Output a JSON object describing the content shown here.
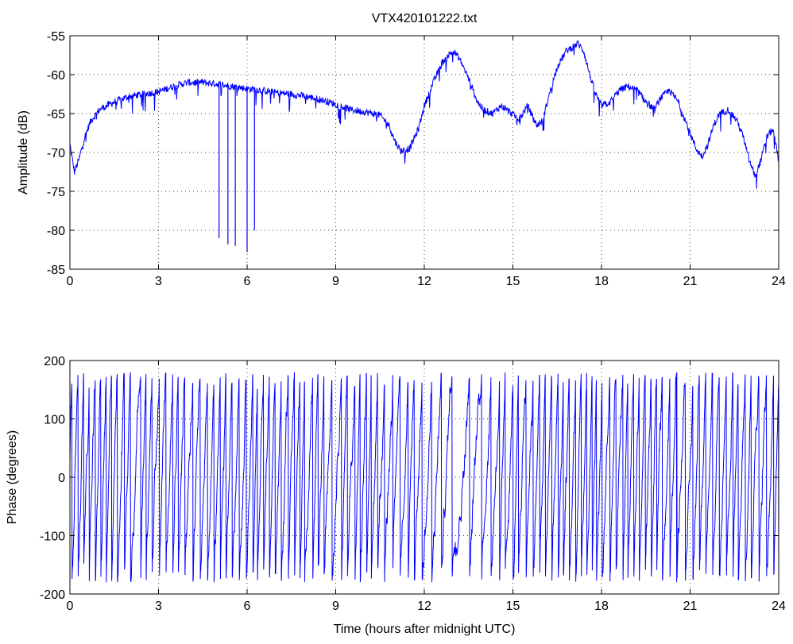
{
  "chart_data": [
    {
      "type": "line",
      "title": "VTX420101222.txt",
      "xlabel": "",
      "ylabel": "Amplitude (dB)",
      "xlim": [
        0,
        24
      ],
      "ylim": [
        -85,
        -55
      ],
      "xticks": [
        0,
        3,
        6,
        9,
        12,
        15,
        18,
        21,
        24
      ],
      "yticks": [
        -85,
        -80,
        -75,
        -70,
        -65,
        -60,
        -55
      ],
      "xtick_labels": [
        "0",
        "3",
        "6",
        "9",
        "12",
        "15",
        "18",
        "21",
        "24"
      ],
      "ytick_labels": [
        "-85",
        "-80",
        "-75",
        "-70",
        "-65",
        "-60",
        "-55"
      ],
      "grid": true,
      "series_color": "#0000ff",
      "series": [
        {
          "name": "",
          "x": [
            0,
            0.15,
            0.3,
            0.5,
            0.7,
            1.0,
            1.5,
            2.0,
            2.5,
            3.0,
            3.5,
            4.0,
            4.5,
            5.0,
            5.5,
            6.0,
            6.5,
            7.0,
            7.5,
            8.0,
            8.5,
            9.0,
            9.5,
            10.0,
            10.5,
            10.8,
            11.0,
            11.2,
            11.5,
            11.8,
            12.0,
            12.3,
            12.6,
            12.8,
            13.0,
            13.2,
            13.5,
            13.8,
            14.0,
            14.3,
            14.6,
            14.9,
            15.2,
            15.5,
            15.8,
            16.0,
            16.2,
            16.5,
            16.8,
            17.0,
            17.2,
            17.4,
            17.6,
            17.8,
            18.0,
            18.3,
            18.6,
            18.9,
            19.2,
            19.5,
            19.8,
            20.0,
            20.3,
            20.6,
            20.9,
            21.2,
            21.4,
            21.6,
            21.8,
            22.0,
            22.3,
            22.6,
            22.8,
            23.0,
            23.2,
            23.4,
            23.6,
            23.8,
            24.0
          ],
          "values": [
            -69,
            -72.5,
            -71,
            -68,
            -66,
            -64.5,
            -63.5,
            -62.8,
            -62.5,
            -62.2,
            -61.5,
            -61,
            -61,
            -61.2,
            -61.5,
            -61.8,
            -62,
            -62.3,
            -62.5,
            -62.8,
            -63.2,
            -63.8,
            -64.5,
            -64.8,
            -65.2,
            -66.5,
            -68.5,
            -69.8,
            -69.5,
            -67,
            -64,
            -61,
            -58.5,
            -57.5,
            -57,
            -58,
            -60.5,
            -63.5,
            -64.5,
            -65,
            -64,
            -64.8,
            -65.8,
            -64,
            -66.5,
            -66,
            -63,
            -59,
            -57,
            -56.5,
            -56,
            -57,
            -60,
            -62.5,
            -64,
            -63.5,
            -62,
            -61.5,
            -62,
            -63.5,
            -64.5,
            -63,
            -62,
            -63.5,
            -66.5,
            -69.5,
            -70.5,
            -69,
            -66.5,
            -65,
            -64.5,
            -66,
            -68,
            -71,
            -73,
            -71,
            -68,
            -67,
            -71
          ]
        }
      ],
      "dropouts": [
        {
          "x": 5.05,
          "value": -81
        },
        {
          "x": 5.35,
          "value": -81.8
        },
        {
          "x": 5.6,
          "value": -82
        },
        {
          "x": 6.0,
          "value": -82.8
        },
        {
          "x": 6.25,
          "value": -80
        }
      ]
    },
    {
      "type": "line",
      "title": "",
      "xlabel": "Time (hours after midnight UTC)",
      "ylabel": "Phase (degrees)",
      "xlim": [
        0,
        24
      ],
      "ylim": [
        -200,
        200
      ],
      "xticks": [
        0,
        3,
        6,
        9,
        12,
        15,
        18,
        21,
        24
      ],
      "yticks": [
        -200,
        -100,
        0,
        100,
        200
      ],
      "xtick_labels": [
        "0",
        "3",
        "6",
        "9",
        "12",
        "15",
        "18",
        "21",
        "24"
      ],
      "ytick_labels": [
        "-200",
        "-100",
        "0",
        "100",
        "200"
      ],
      "grid": true,
      "series_color": "#0000ff",
      "series": [
        {
          "name": "",
          "wrap_range": [
            -180,
            180
          ],
          "wraps_per_hour": [
            5,
            5,
            4.5,
            4.5,
            4.5,
            4.5,
            5,
            5,
            4.5,
            4.5,
            4.5,
            4,
            3,
            2.5,
            4,
            4.5,
            4.5,
            5,
            5,
            5,
            4.5,
            4.5,
            4.5,
            4.5
          ]
        }
      ]
    }
  ]
}
